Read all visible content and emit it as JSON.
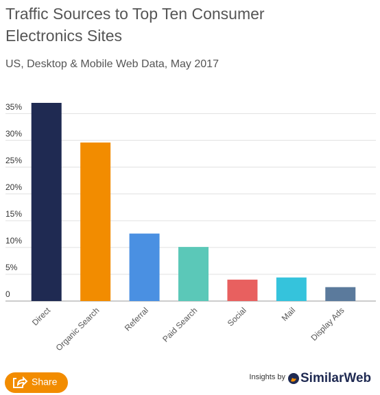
{
  "chart_data": {
    "type": "bar",
    "title": [
      "Traffic Sources to Top Ten Consumer",
      "Electronics Sites"
    ],
    "subtitle": "US, Desktop & Mobile Web Data, May 2017",
    "categories": [
      "Direct",
      "Organic Search",
      "Referral",
      "Paid Search",
      "Social",
      "Mail",
      "Display Ads"
    ],
    "values": [
      37,
      29.6,
      12.6,
      10.1,
      4,
      4.4,
      2.6
    ],
    "colors": [
      "#1f2a52",
      "#f28c00",
      "#4a90e2",
      "#5bc8b8",
      "#e8605f",
      "#35c3dc",
      "#5b7a9c"
    ],
    "ylim": [
      0,
      37
    ],
    "yticks": [
      0,
      {
        "value": 5,
        "label": "5%"
      },
      {
        "value": 10,
        "label": "10%"
      },
      {
        "value": 15,
        "label": "15%"
      },
      {
        "value": 20,
        "label": "20%"
      },
      {
        "value": 25,
        "label": "25%"
      },
      {
        "value": 30,
        "label": "30%"
      },
      {
        "value": 35,
        "label": "35%"
      }
    ],
    "grid": true
  },
  "ui": {
    "share": "Share",
    "credit": "Insights by",
    "brand": "SimilarWeb"
  }
}
